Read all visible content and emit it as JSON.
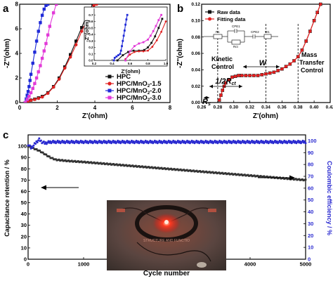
{
  "colors": {
    "hpc": "#111111",
    "mno15": "#e02020",
    "mno20": "#1f2ad8",
    "mno30": "#e23ad8",
    "raw": "#111111",
    "fit": "#e22020",
    "retention": "#333333",
    "efficiency": "#2a2ad0",
    "photo_bg": "#5a4a44",
    "led": "#ff2a1a"
  },
  "panels": [
    {
      "id": "a",
      "label": "a"
    },
    {
      "id": "b",
      "label": "b"
    },
    {
      "id": "c",
      "label": "c"
    }
  ],
  "chart_data": [
    {
      "id": "a",
      "type": "line",
      "xlabel": "Z'(ohm)",
      "ylabel": "-Z''(ohm)",
      "xlim": [
        0,
        8
      ],
      "ylim": [
        0,
        8
      ],
      "xticks": [
        0,
        2,
        4,
        6,
        8
      ],
      "yticks": [
        0,
        2,
        4,
        6,
        8
      ],
      "legend_position": "bottom-right",
      "series": [
        {
          "name": "HPC",
          "marker": "square",
          "colorKey": "hpc",
          "x": [
            0.3,
            0.45,
            0.6,
            0.8,
            1.0,
            1.2,
            1.5,
            1.8,
            2.1,
            2.4,
            2.7,
            3.0,
            3.3,
            3.6,
            3.9
          ],
          "y": [
            0.0,
            0.12,
            0.2,
            0.28,
            0.38,
            0.5,
            0.8,
            1.3,
            2.0,
            2.9,
            3.9,
            5.0,
            6.1,
            7.2,
            8.0
          ]
        },
        {
          "name": "HPC/MnO2-1.5",
          "label_main": "HPC/MnO",
          "label_sub": "2",
          "label_tail": "-1.5",
          "marker": "circle",
          "colorKey": "mno15",
          "x": [
            0.3,
            0.45,
            0.6,
            0.8,
            1.0,
            1.2,
            1.5,
            1.8,
            2.1,
            2.4,
            2.7,
            3.0,
            3.3,
            3.6,
            3.95,
            4.1
          ],
          "y": [
            0.0,
            0.1,
            0.18,
            0.25,
            0.33,
            0.45,
            0.75,
            1.25,
            1.9,
            2.8,
            3.7,
            4.7,
            5.8,
            6.8,
            7.9,
            8.0
          ]
        },
        {
          "name": "HPC/MnO2-2.0",
          "label_main": "HPC/MnO",
          "label_sub": "2",
          "label_tail": "-2.0",
          "marker": "square",
          "colorKey": "mno20",
          "x": [
            0.3,
            0.35,
            0.4,
            0.45,
            0.5,
            0.55,
            0.6,
            0.7,
            0.8,
            0.9,
            1.0,
            1.1,
            1.2,
            1.3,
            1.4,
            1.5
          ],
          "y": [
            0.0,
            0.3,
            0.6,
            0.9,
            1.3,
            1.8,
            2.3,
            3.2,
            4.1,
            5.0,
            5.8,
            6.5,
            7.1,
            7.6,
            7.9,
            8.0
          ]
        },
        {
          "name": "HPC/MnO2-3.0",
          "label_main": "HPC/MnO",
          "label_sub": "2",
          "label_tail": "-3.0",
          "marker": "square",
          "colorKey": "mno30",
          "x": [
            0.3,
            0.4,
            0.5,
            0.6,
            0.7,
            0.8,
            0.9,
            1.0,
            1.1,
            1.2,
            1.3,
            1.4,
            1.5,
            1.6,
            1.8,
            1.95
          ],
          "y": [
            0.0,
            0.25,
            0.5,
            0.8,
            1.15,
            1.55,
            2.0,
            2.5,
            3.0,
            3.6,
            4.2,
            4.8,
            5.5,
            6.2,
            7.3,
            8.0
          ]
        }
      ]
    },
    {
      "id": "a-inset",
      "type": "line",
      "xlabel": "Z'(ohm)",
      "ylabel": "-Z''(ohm)",
      "xlim": [
        0.2,
        1.0
      ],
      "ylim": [
        0.0,
        0.8
      ],
      "xticks": [
        0.2,
        0.4,
        0.6,
        0.8,
        1.0
      ],
      "yticks": [
        0.0,
        0.1,
        0.2,
        0.3,
        0.4,
        0.5,
        0.6,
        0.7
      ],
      "series": [
        {
          "ref": "HPC",
          "colorKey": "hpc",
          "x": [
            0.46,
            0.52,
            0.58,
            0.64,
            0.7,
            0.76,
            0.8,
            0.84,
            0.88,
            0.92,
            0.96
          ],
          "y": [
            0.0,
            0.08,
            0.13,
            0.15,
            0.15,
            0.16,
            0.2,
            0.27,
            0.37,
            0.5,
            0.64
          ]
        },
        {
          "ref": "HPC/MnO2-1.5",
          "colorKey": "mno15",
          "x": [
            0.55,
            0.6,
            0.65,
            0.7,
            0.75,
            0.8,
            0.85,
            0.9,
            0.95,
            1.0
          ],
          "y": [
            0.02,
            0.09,
            0.13,
            0.14,
            0.14,
            0.15,
            0.21,
            0.31,
            0.44,
            0.6
          ]
        },
        {
          "ref": "HPC/MnO2-2.0",
          "colorKey": "mno20",
          "x": [
            0.42,
            0.43,
            0.45,
            0.47,
            0.49,
            0.5,
            0.51,
            0.52,
            0.53,
            0.54,
            0.55,
            0.56,
            0.57
          ],
          "y": [
            0.0,
            0.04,
            0.06,
            0.08,
            0.1,
            0.15,
            0.22,
            0.3,
            0.38,
            0.46,
            0.55,
            0.63,
            0.7
          ]
        },
        {
          "ref": "HPC/MnO2-3.0",
          "colorKey": "mno30",
          "x": [
            0.55,
            0.6,
            0.65,
            0.7,
            0.75,
            0.8,
            0.83,
            0.86,
            0.89,
            0.92,
            0.95
          ],
          "y": [
            0.0,
            0.14,
            0.22,
            0.26,
            0.28,
            0.32,
            0.38,
            0.45,
            0.53,
            0.62,
            0.7
          ]
        }
      ]
    },
    {
      "id": "b",
      "type": "line",
      "xlabel": "Z'(ohm)",
      "ylabel": "-Z''(ohm)",
      "xlim": [
        0.26,
        0.42
      ],
      "ylim": [
        0.0,
        0.12
      ],
      "xticks": [
        0.26,
        0.28,
        0.3,
        0.32,
        0.34,
        0.36,
        0.38,
        0.4,
        0.42
      ],
      "xtick_labels": [
        "0.26",
        "0.28",
        "0.30",
        "0.32",
        "0.34",
        "0.36",
        "0.38",
        "0.40",
        "0.42"
      ],
      "yticks": [
        0.0,
        0.02,
        0.04,
        0.06,
        0.08,
        0.1,
        0.12
      ],
      "ytick_labels": [
        "0.00",
        "0.02",
        "0.04",
        "0.06",
        "0.08",
        "0.10",
        "0.12"
      ],
      "legend_position": "top-left",
      "series": [
        {
          "name": "Raw data",
          "marker": "square",
          "colorKey": "raw",
          "x": [
            0.282,
            0.284,
            0.286,
            0.288,
            0.29,
            0.294,
            0.298,
            0.302,
            0.306,
            0.31,
            0.315,
            0.32,
            0.325,
            0.33,
            0.335,
            0.34,
            0.345,
            0.35,
            0.355,
            0.36,
            0.365,
            0.37,
            0.375,
            0.38,
            0.385,
            0.39,
            0.395,
            0.4,
            0.404,
            0.408
          ],
          "y": [
            0.003,
            0.009,
            0.015,
            0.02,
            0.024,
            0.028,
            0.031,
            0.032,
            0.033,
            0.033,
            0.033,
            0.033,
            0.033,
            0.033,
            0.034,
            0.035,
            0.036,
            0.037,
            0.039,
            0.041,
            0.044,
            0.047,
            0.051,
            0.056,
            0.064,
            0.075,
            0.087,
            0.1,
            0.11,
            0.12
          ]
        },
        {
          "name": "Fitting data",
          "marker": "circle",
          "colorKey": "fit",
          "x": [
            0.282,
            0.284,
            0.286,
            0.288,
            0.29,
            0.294,
            0.298,
            0.302,
            0.306,
            0.31,
            0.315,
            0.32,
            0.325,
            0.33,
            0.335,
            0.34,
            0.345,
            0.35,
            0.355,
            0.36,
            0.365,
            0.37,
            0.375,
            0.38,
            0.385,
            0.39,
            0.395,
            0.4,
            0.404,
            0.408
          ],
          "y": [
            0.003,
            0.009,
            0.015,
            0.02,
            0.024,
            0.028,
            0.031,
            0.032,
            0.033,
            0.033,
            0.033,
            0.033,
            0.033,
            0.033,
            0.034,
            0.035,
            0.036,
            0.037,
            0.039,
            0.041,
            0.044,
            0.047,
            0.051,
            0.056,
            0.064,
            0.075,
            0.087,
            0.1,
            0.11,
            0.12
          ]
        }
      ],
      "annotations": {
        "kinetic": [
          "Kinetic",
          "Control"
        ],
        "mass": [
          "Mass",
          "Transfer",
          "Control"
        ],
        "rs": "R",
        "rs_sub": "s",
        "rct_main": "1/2R",
        "rct_sub": "ct",
        "w": "W",
        "circuit": {
          "rs": "Rs",
          "cpe1": "CPE1",
          "cpe2": "CPE2",
          "w1": "W1",
          "rct": "Rct"
        }
      },
      "vlines": [
        0.28,
        0.34,
        0.38
      ]
    },
    {
      "id": "c",
      "type": "scatter",
      "xlabel": "Cycle number",
      "ylabel": "Capacitance retention / %",
      "y2label": "Coulombic efficiency / %",
      "xlim": [
        0,
        5000
      ],
      "ylim": [
        0,
        110
      ],
      "y2lim": [
        0,
        105
      ],
      "xticks": [
        0,
        1000,
        2000,
        3000,
        4000,
        5000
      ],
      "yticks": [
        0,
        10,
        20,
        30,
        40,
        50,
        60,
        70,
        80,
        90,
        100
      ],
      "y2ticks": [
        0,
        10,
        20,
        30,
        40,
        50,
        60,
        70,
        80,
        90,
        100
      ],
      "series": [
        {
          "name": "Capacitance retention",
          "axis": "left",
          "marker": "square",
          "colorKey": "retention",
          "x": [
            0,
            100,
            200,
            300,
            400,
            500,
            700,
            1000,
            1500,
            2000,
            2500,
            3000,
            3500,
            4000,
            4500,
            5000
          ],
          "y": [
            100,
            98,
            96,
            93,
            90,
            88,
            87,
            86,
            84,
            82,
            80,
            78,
            76,
            74,
            72,
            70
          ]
        },
        {
          "name": "Coulombic efficiency",
          "axis": "right",
          "marker": "circle",
          "colorKey": "efficiency",
          "x": [
            0,
            50,
            100,
            150,
            200,
            250,
            300,
            400,
            600,
            1000,
            1500,
            2000,
            2500,
            3000,
            3500,
            4000,
            4500,
            5000
          ],
          "y": [
            97,
            94,
            96,
            99,
            101,
            99,
            98,
            99,
            99,
            99,
            99,
            99,
            99,
            99,
            99,
            99,
            99,
            99
          ]
        }
      ],
      "photo_text": [
        "STRUCTURE AND FUNCTIO"
      ]
    }
  ]
}
